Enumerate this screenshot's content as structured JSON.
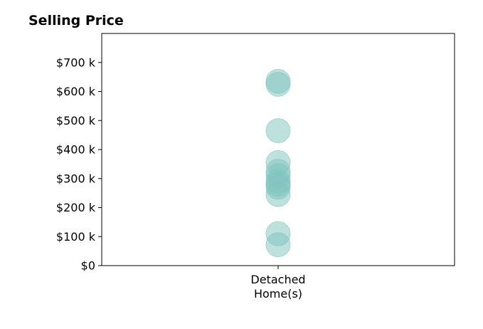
{
  "chart_data": {
    "type": "scatter",
    "title": "Selling Price",
    "xlabel": "",
    "ylabel": "",
    "categories": [
      [
        "Detached",
        "Home(s)"
      ]
    ],
    "ylim": [
      0,
      800000
    ],
    "yticks": [
      0,
      100000,
      200000,
      300000,
      400000,
      500000,
      600000,
      700000
    ],
    "ytick_labels": [
      "$0",
      "$100 k",
      "$200 k",
      "$300 k",
      "$400 k",
      "$500 k",
      "$600 k",
      "$700 k"
    ],
    "grid": false,
    "legend": "none",
    "series": [
      {
        "category_index": 0,
        "values": [
          72000,
          110000,
          245000,
          270000,
          280000,
          290000,
          310000,
          325000,
          355000,
          465000,
          625000,
          635000
        ]
      }
    ],
    "marker_color": "#7fc4bd",
    "marker_opacity": 0.5
  }
}
